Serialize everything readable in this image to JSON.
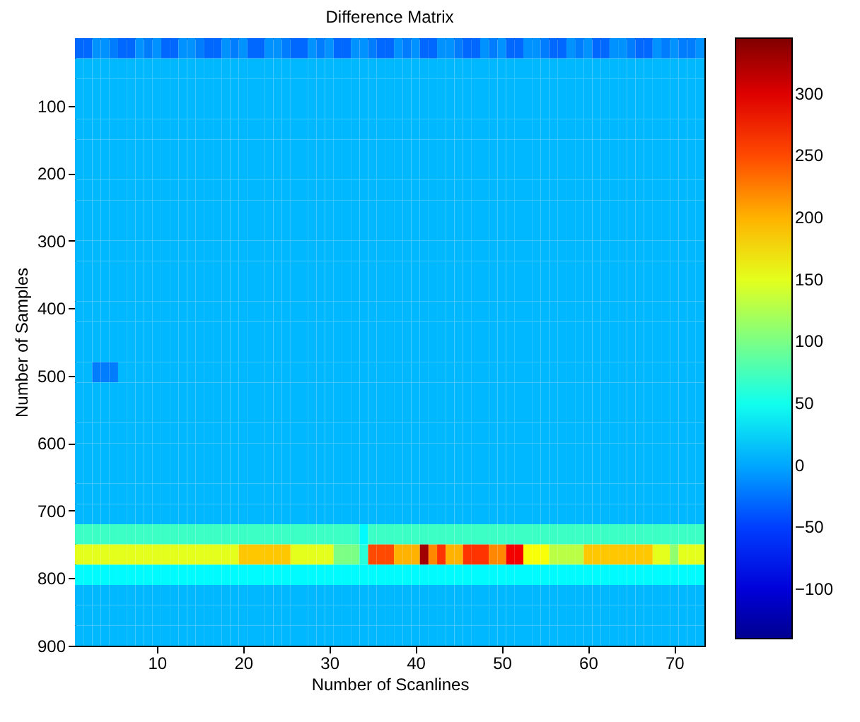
{
  "chart_data": {
    "type": "heatmap",
    "title": "Difference Matrix",
    "xlabel": "Number of Scanlines",
    "ylabel": "Number of Samples",
    "xlim": [
      0.5,
      73.5
    ],
    "ylim": [
      900,
      0
    ],
    "xticks": [
      10,
      20,
      30,
      40,
      50,
      60,
      70
    ],
    "yticks": [
      100,
      200,
      300,
      400,
      500,
      600,
      700,
      800,
      900
    ],
    "clim": [
      -140,
      345
    ],
    "cticks": [
      -100,
      -50,
      0,
      50,
      100,
      150,
      200,
      250,
      300
    ],
    "cells": [
      [
        -30,
        -30,
        -10,
        -10,
        -20,
        -30,
        -30,
        -10,
        -20,
        -10,
        -30,
        -30,
        -10,
        -10,
        -20,
        -30,
        -30,
        -10,
        -20,
        -10,
        -30,
        -30,
        -10,
        -10,
        -20,
        -30,
        -30,
        -10,
        -20,
        -10,
        -30,
        -30,
        -10,
        -10,
        -20,
        -30,
        -30,
        -10,
        -20,
        -10,
        -30,
        -30,
        -10,
        -10,
        -20,
        -30,
        -30,
        -10,
        -20,
        -10,
        -30,
        -30,
        -10,
        -10,
        -20,
        -30,
        -30,
        -10,
        -20,
        -10,
        -30,
        -30,
        -10,
        -10,
        -20,
        -30,
        -30,
        -10,
        -20,
        -10,
        -20,
        -20,
        -10
      ],
      [
        8,
        8,
        8,
        8,
        8,
        8,
        8,
        8,
        8,
        8,
        8,
        8,
        8,
        8,
        8,
        8,
        8,
        8,
        8,
        8,
        8,
        8,
        8,
        8,
        8,
        8,
        8,
        8,
        8,
        8,
        8,
        8,
        8,
        8,
        8,
        8,
        8,
        8,
        8,
        8,
        8,
        8,
        8,
        8,
        8,
        8,
        8,
        8,
        8,
        8,
        8,
        8,
        8,
        8,
        8,
        8,
        8,
        8,
        8,
        8,
        8,
        8,
        8,
        8,
        8,
        8,
        8,
        8,
        8,
        8,
        8,
        8,
        8
      ],
      [
        8,
        8,
        8,
        8,
        8,
        8,
        8,
        8,
        8,
        8,
        8,
        8,
        8,
        8,
        8,
        8,
        8,
        8,
        8,
        8,
        8,
        8,
        8,
        8,
        8,
        8,
        8,
        8,
        8,
        8,
        8,
        8,
        8,
        8,
        8,
        8,
        8,
        8,
        8,
        8,
        8,
        8,
        8,
        8,
        8,
        8,
        8,
        8,
        8,
        8,
        8,
        8,
        8,
        8,
        8,
        8,
        8,
        8,
        8,
        8,
        8,
        8,
        8,
        8,
        8,
        8,
        8,
        8,
        8,
        8,
        8,
        8,
        8
      ],
      [
        8,
        8,
        8,
        8,
        8,
        8,
        8,
        8,
        8,
        8,
        8,
        8,
        8,
        8,
        8,
        8,
        8,
        8,
        8,
        8,
        8,
        8,
        8,
        8,
        8,
        8,
        8,
        8,
        8,
        8,
        8,
        8,
        8,
        8,
        8,
        8,
        8,
        8,
        8,
        8,
        8,
        8,
        8,
        8,
        8,
        8,
        8,
        8,
        8,
        8,
        8,
        8,
        8,
        8,
        8,
        8,
        8,
        8,
        8,
        8,
        8,
        8,
        8,
        8,
        8,
        8,
        8,
        8,
        8,
        8,
        8,
        8,
        8
      ],
      [
        8,
        8,
        8,
        8,
        8,
        8,
        8,
        8,
        8,
        8,
        8,
        8,
        8,
        8,
        8,
        8,
        8,
        8,
        8,
        8,
        8,
        8,
        8,
        8,
        8,
        8,
        8,
        8,
        8,
        8,
        8,
        8,
        8,
        8,
        8,
        8,
        8,
        8,
        8,
        8,
        8,
        8,
        8,
        8,
        8,
        8,
        8,
        8,
        8,
        8,
        8,
        8,
        8,
        8,
        8,
        8,
        8,
        8,
        8,
        8,
        8,
        8,
        8,
        8,
        8,
        8,
        8,
        8,
        8,
        8,
        8,
        8,
        8
      ],
      [
        8,
        8,
        8,
        8,
        8,
        8,
        8,
        8,
        8,
        8,
        8,
        8,
        8,
        8,
        8,
        8,
        8,
        8,
        8,
        8,
        8,
        8,
        8,
        8,
        8,
        8,
        8,
        8,
        8,
        8,
        8,
        8,
        8,
        8,
        8,
        8,
        8,
        8,
        8,
        8,
        8,
        8,
        8,
        8,
        8,
        8,
        8,
        8,
        8,
        8,
        8,
        8,
        8,
        8,
        8,
        8,
        8,
        8,
        8,
        8,
        8,
        8,
        8,
        8,
        8,
        8,
        8,
        8,
        8,
        8,
        8,
        8,
        8
      ],
      [
        8,
        8,
        8,
        8,
        8,
        8,
        8,
        8,
        8,
        8,
        8,
        8,
        8,
        8,
        8,
        8,
        8,
        8,
        8,
        8,
        8,
        8,
        8,
        8,
        8,
        8,
        8,
        8,
        8,
        8,
        8,
        8,
        8,
        8,
        8,
        8,
        8,
        8,
        8,
        8,
        8,
        8,
        8,
        8,
        8,
        8,
        8,
        8,
        8,
        8,
        8,
        8,
        8,
        8,
        8,
        8,
        8,
        8,
        8,
        8,
        8,
        8,
        8,
        8,
        8,
        8,
        8,
        8,
        8,
        8,
        8,
        8,
        8
      ],
      [
        8,
        8,
        8,
        8,
        8,
        8,
        8,
        8,
        8,
        8,
        8,
        8,
        8,
        8,
        8,
        8,
        8,
        8,
        8,
        8,
        8,
        8,
        8,
        8,
        8,
        8,
        8,
        8,
        8,
        8,
        8,
        8,
        8,
        8,
        8,
        8,
        8,
        8,
        8,
        8,
        8,
        8,
        8,
        8,
        8,
        8,
        8,
        8,
        8,
        8,
        8,
        8,
        8,
        8,
        8,
        8,
        8,
        8,
        8,
        8,
        8,
        8,
        8,
        8,
        8,
        8,
        8,
        8,
        8,
        8,
        8,
        8,
        8
      ],
      [
        8,
        8,
        8,
        8,
        8,
        8,
        8,
        8,
        8,
        8,
        8,
        8,
        8,
        8,
        8,
        8,
        8,
        8,
        8,
        8,
        8,
        8,
        8,
        8,
        8,
        8,
        8,
        8,
        8,
        8,
        8,
        8,
        8,
        8,
        8,
        8,
        8,
        8,
        8,
        8,
        8,
        8,
        8,
        8,
        8,
        8,
        8,
        8,
        8,
        8,
        8,
        8,
        8,
        8,
        8,
        8,
        8,
        8,
        8,
        8,
        8,
        8,
        8,
        8,
        8,
        8,
        8,
        8,
        8,
        8,
        8,
        8,
        8
      ],
      [
        8,
        8,
        8,
        8,
        8,
        8,
        8,
        8,
        8,
        8,
        8,
        8,
        8,
        8,
        8,
        8,
        8,
        8,
        8,
        8,
        8,
        8,
        8,
        8,
        8,
        8,
        8,
        8,
        8,
        8,
        8,
        8,
        8,
        8,
        8,
        8,
        8,
        8,
        8,
        8,
        8,
        8,
        8,
        8,
        8,
        8,
        8,
        8,
        8,
        8,
        8,
        8,
        8,
        8,
        8,
        8,
        8,
        8,
        8,
        8,
        8,
        8,
        8,
        8,
        8,
        8,
        8,
        8,
        8,
        8,
        8,
        8,
        8
      ],
      [
        8,
        8,
        8,
        8,
        8,
        8,
        8,
        8,
        8,
        8,
        8,
        8,
        8,
        8,
        8,
        8,
        8,
        8,
        8,
        8,
        8,
        8,
        8,
        8,
        8,
        8,
        8,
        8,
        8,
        8,
        8,
        8,
        8,
        8,
        8,
        8,
        8,
        8,
        8,
        8,
        8,
        8,
        8,
        8,
        8,
        8,
        8,
        8,
        8,
        8,
        8,
        8,
        8,
        8,
        8,
        8,
        8,
        8,
        8,
        8,
        8,
        8,
        8,
        8,
        8,
        8,
        8,
        8,
        8,
        8,
        8,
        8,
        8
      ],
      [
        8,
        8,
        8,
        8,
        8,
        8,
        8,
        8,
        8,
        8,
        8,
        8,
        8,
        8,
        8,
        8,
        8,
        8,
        8,
        8,
        8,
        8,
        8,
        8,
        8,
        8,
        8,
        8,
        8,
        8,
        8,
        8,
        8,
        8,
        8,
        8,
        8,
        8,
        8,
        8,
        8,
        8,
        8,
        8,
        8,
        8,
        8,
        8,
        8,
        8,
        8,
        8,
        8,
        8,
        8,
        8,
        8,
        8,
        8,
        8,
        8,
        8,
        8,
        8,
        8,
        8,
        8,
        8,
        8,
        8,
        8,
        8,
        8
      ],
      [
        8,
        8,
        8,
        8,
        8,
        8,
        8,
        8,
        8,
        8,
        8,
        8,
        8,
        8,
        8,
        8,
        8,
        8,
        8,
        8,
        8,
        8,
        8,
        8,
        8,
        8,
        8,
        8,
        8,
        8,
        8,
        8,
        8,
        8,
        8,
        8,
        8,
        8,
        8,
        8,
        8,
        8,
        8,
        8,
        8,
        8,
        8,
        8,
        8,
        8,
        8,
        8,
        8,
        8,
        8,
        8,
        8,
        8,
        8,
        8,
        8,
        8,
        8,
        8,
        8,
        8,
        8,
        8,
        8,
        8,
        8,
        8,
        8
      ],
      [
        8,
        8,
        8,
        8,
        8,
        8,
        8,
        8,
        8,
        8,
        8,
        8,
        8,
        8,
        8,
        8,
        8,
        8,
        8,
        8,
        8,
        8,
        8,
        8,
        8,
        8,
        8,
        8,
        8,
        8,
        8,
        8,
        8,
        8,
        8,
        8,
        8,
        8,
        8,
        8,
        8,
        8,
        8,
        8,
        8,
        8,
        8,
        8,
        8,
        8,
        8,
        8,
        8,
        8,
        8,
        8,
        8,
        8,
        8,
        8,
        8,
        8,
        8,
        8,
        8,
        8,
        8,
        8,
        8,
        8,
        8,
        8,
        8
      ],
      [
        8,
        8,
        8,
        8,
        8,
        8,
        8,
        8,
        8,
        8,
        8,
        8,
        8,
        8,
        8,
        8,
        8,
        8,
        8,
        8,
        8,
        8,
        8,
        8,
        8,
        8,
        8,
        8,
        8,
        8,
        8,
        8,
        8,
        8,
        8,
        8,
        8,
        8,
        8,
        8,
        8,
        8,
        8,
        8,
        8,
        8,
        8,
        8,
        8,
        8,
        8,
        8,
        8,
        8,
        8,
        8,
        8,
        8,
        8,
        8,
        8,
        8,
        8,
        8,
        8,
        8,
        8,
        8,
        8,
        8,
        8,
        8,
        8
      ],
      [
        8,
        8,
        8,
        8,
        8,
        8,
        8,
        8,
        8,
        8,
        8,
        8,
        8,
        8,
        8,
        8,
        8,
        8,
        8,
        8,
        8,
        8,
        8,
        8,
        8,
        8,
        8,
        8,
        8,
        8,
        8,
        8,
        8,
        8,
        8,
        8,
        8,
        8,
        8,
        8,
        8,
        8,
        8,
        8,
        8,
        8,
        8,
        8,
        8,
        8,
        8,
        8,
        8,
        8,
        8,
        8,
        8,
        8,
        8,
        8,
        8,
        8,
        8,
        8,
        8,
        8,
        8,
        8,
        8,
        8,
        8,
        8,
        8
      ],
      [
        8,
        8,
        -20,
        -20,
        -20,
        8,
        8,
        8,
        8,
        8,
        8,
        8,
        8,
        8,
        8,
        8,
        8,
        8,
        8,
        8,
        8,
        8,
        8,
        8,
        8,
        8,
        8,
        8,
        8,
        8,
        8,
        8,
        8,
        8,
        8,
        8,
        8,
        8,
        8,
        8,
        8,
        8,
        8,
        8,
        8,
        8,
        8,
        8,
        8,
        8,
        8,
        8,
        8,
        8,
        8,
        8,
        8,
        8,
        8,
        8,
        8,
        8,
        8,
        8,
        8,
        8,
        8,
        8,
        8,
        8,
        8,
        8,
        8
      ],
      [
        8,
        8,
        8,
        8,
        8,
        8,
        8,
        8,
        8,
        8,
        8,
        8,
        8,
        8,
        8,
        8,
        8,
        8,
        8,
        8,
        8,
        8,
        8,
        8,
        8,
        8,
        8,
        8,
        8,
        8,
        8,
        8,
        8,
        8,
        8,
        8,
        8,
        8,
        8,
        8,
        8,
        8,
        8,
        8,
        8,
        8,
        8,
        8,
        8,
        8,
        8,
        8,
        8,
        8,
        8,
        8,
        8,
        8,
        8,
        8,
        8,
        8,
        8,
        8,
        8,
        8,
        8,
        8,
        8,
        8,
        8,
        8,
        8
      ],
      [
        8,
        8,
        8,
        8,
        8,
        8,
        8,
        8,
        8,
        8,
        8,
        8,
        8,
        8,
        8,
        8,
        8,
        8,
        8,
        8,
        8,
        8,
        8,
        8,
        8,
        8,
        8,
        8,
        8,
        8,
        8,
        8,
        8,
        8,
        8,
        8,
        8,
        8,
        8,
        8,
        8,
        8,
        8,
        8,
        8,
        8,
        8,
        8,
        8,
        8,
        8,
        8,
        8,
        8,
        8,
        8,
        8,
        8,
        8,
        8,
        8,
        8,
        8,
        8,
        8,
        8,
        8,
        8,
        8,
        8,
        8,
        8,
        8
      ],
      [
        8,
        8,
        8,
        8,
        8,
        8,
        8,
        8,
        8,
        8,
        8,
        8,
        8,
        8,
        8,
        8,
        8,
        8,
        8,
        8,
        8,
        8,
        8,
        8,
        8,
        8,
        8,
        8,
        8,
        8,
        8,
        8,
        8,
        8,
        8,
        8,
        8,
        8,
        8,
        8,
        8,
        8,
        8,
        8,
        8,
        8,
        8,
        8,
        8,
        8,
        8,
        8,
        8,
        8,
        8,
        8,
        8,
        8,
        8,
        8,
        8,
        8,
        8,
        8,
        8,
        8,
        8,
        8,
        8,
        8,
        8,
        8,
        8
      ],
      [
        8,
        8,
        8,
        8,
        8,
        8,
        8,
        8,
        8,
        8,
        8,
        8,
        8,
        8,
        8,
        8,
        8,
        8,
        8,
        8,
        8,
        8,
        8,
        8,
        8,
        8,
        8,
        8,
        8,
        8,
        8,
        8,
        8,
        8,
        8,
        8,
        8,
        8,
        8,
        8,
        8,
        8,
        8,
        8,
        8,
        8,
        8,
        8,
        8,
        8,
        8,
        8,
        8,
        8,
        8,
        8,
        8,
        8,
        8,
        8,
        8,
        8,
        8,
        8,
        8,
        8,
        8,
        8,
        8,
        8,
        8,
        8,
        8
      ],
      [
        8,
        8,
        8,
        8,
        8,
        8,
        8,
        8,
        8,
        8,
        8,
        8,
        8,
        8,
        8,
        8,
        8,
        8,
        8,
        8,
        8,
        8,
        8,
        8,
        8,
        8,
        8,
        8,
        8,
        8,
        8,
        8,
        8,
        8,
        8,
        8,
        8,
        8,
        8,
        8,
        8,
        8,
        8,
        8,
        8,
        8,
        8,
        8,
        8,
        8,
        8,
        8,
        8,
        8,
        8,
        8,
        8,
        8,
        8,
        8,
        8,
        8,
        8,
        8,
        8,
        8,
        8,
        8,
        8,
        8,
        8,
        8,
        8
      ],
      [
        8,
        8,
        8,
        8,
        8,
        8,
        8,
        8,
        8,
        8,
        8,
        8,
        8,
        8,
        8,
        8,
        8,
        8,
        8,
        8,
        8,
        8,
        8,
        8,
        8,
        8,
        8,
        8,
        8,
        8,
        8,
        8,
        8,
        8,
        8,
        8,
        8,
        8,
        8,
        8,
        8,
        8,
        8,
        8,
        8,
        8,
        8,
        8,
        8,
        8,
        8,
        8,
        8,
        8,
        8,
        8,
        8,
        8,
        8,
        8,
        8,
        8,
        8,
        8,
        8,
        8,
        8,
        8,
        8,
        8,
        8,
        8,
        8
      ],
      [
        8,
        8,
        8,
        8,
        8,
        8,
        8,
        8,
        8,
        8,
        8,
        8,
        8,
        8,
        8,
        8,
        8,
        8,
        8,
        8,
        8,
        8,
        8,
        8,
        8,
        8,
        8,
        8,
        8,
        8,
        8,
        8,
        8,
        8,
        8,
        8,
        8,
        8,
        8,
        8,
        8,
        8,
        8,
        8,
        8,
        8,
        8,
        8,
        8,
        8,
        8,
        8,
        8,
        8,
        8,
        8,
        8,
        8,
        8,
        8,
        8,
        8,
        8,
        8,
        8,
        8,
        8,
        8,
        8,
        8,
        8,
        8,
        8
      ],
      [
        70,
        70,
        70,
        70,
        70,
        70,
        70,
        70,
        70,
        70,
        70,
        70,
        70,
        70,
        70,
        70,
        70,
        70,
        70,
        70,
        70,
        70,
        70,
        70,
        70,
        70,
        70,
        70,
        70,
        70,
        70,
        70,
        70,
        40,
        70,
        70,
        70,
        70,
        70,
        70,
        70,
        70,
        70,
        70,
        70,
        70,
        70,
        70,
        70,
        70,
        70,
        70,
        70,
        70,
        70,
        70,
        70,
        70,
        70,
        70,
        70,
        70,
        70,
        70,
        70,
        70,
        70,
        70,
        70,
        70,
        70,
        70,
        70
      ],
      [
        150,
        150,
        150,
        150,
        150,
        150,
        150,
        150,
        150,
        150,
        150,
        150,
        150,
        150,
        150,
        150,
        150,
        150,
        150,
        190,
        190,
        190,
        190,
        190,
        190,
        150,
        150,
        150,
        150,
        150,
        100,
        100,
        100,
        60,
        250,
        250,
        250,
        200,
        200,
        200,
        330,
        220,
        260,
        200,
        200,
        260,
        260,
        260,
        220,
        220,
        290,
        290,
        160,
        160,
        160,
        130,
        130,
        130,
        130,
        190,
        190,
        190,
        190,
        190,
        190,
        190,
        190,
        150,
        150,
        110,
        150,
        150,
        150
      ],
      [
        40,
        40,
        40,
        40,
        40,
        40,
        40,
        40,
        40,
        40,
        40,
        40,
        40,
        40,
        40,
        40,
        40,
        40,
        40,
        40,
        40,
        40,
        40,
        40,
        40,
        40,
        40,
        40,
        40,
        40,
        40,
        40,
        40,
        40,
        40,
        40,
        40,
        40,
        40,
        40,
        40,
        40,
        40,
        40,
        40,
        40,
        40,
        40,
        40,
        40,
        40,
        40,
        40,
        40,
        40,
        40,
        40,
        40,
        40,
        40,
        40,
        40,
        40,
        40,
        40,
        40,
        40,
        40,
        40,
        40,
        40,
        40,
        40
      ],
      [
        8,
        8,
        8,
        8,
        8,
        8,
        8,
        8,
        8,
        8,
        8,
        8,
        8,
        8,
        8,
        8,
        8,
        8,
        8,
        8,
        8,
        8,
        8,
        8,
        8,
        8,
        8,
        8,
        8,
        8,
        8,
        8,
        8,
        8,
        8,
        8,
        8,
        8,
        8,
        8,
        8,
        8,
        8,
        8,
        8,
        8,
        8,
        8,
        8,
        8,
        8,
        8,
        8,
        8,
        8,
        8,
        8,
        8,
        8,
        8,
        8,
        8,
        8,
        8,
        8,
        8,
        8,
        8,
        8,
        8,
        8,
        8,
        8
      ],
      [
        8,
        8,
        8,
        8,
        8,
        8,
        8,
        8,
        8,
        8,
        8,
        8,
        8,
        8,
        8,
        8,
        8,
        8,
        8,
        8,
        8,
        8,
        8,
        8,
        8,
        8,
        8,
        8,
        8,
        8,
        8,
        8,
        8,
        8,
        8,
        8,
        8,
        8,
        8,
        8,
        8,
        8,
        8,
        8,
        8,
        8,
        8,
        8,
        8,
        8,
        8,
        8,
        8,
        8,
        8,
        8,
        8,
        8,
        8,
        8,
        8,
        8,
        8,
        8,
        8,
        8,
        8,
        8,
        8,
        8,
        8,
        8,
        8
      ],
      [
        8,
        8,
        8,
        8,
        8,
        8,
        8,
        8,
        8,
        8,
        8,
        8,
        8,
        8,
        8,
        8,
        8,
        8,
        8,
        8,
        8,
        8,
        8,
        8,
        8,
        8,
        8,
        8,
        8,
        8,
        8,
        8,
        8,
        8,
        8,
        8,
        8,
        8,
        8,
        8,
        8,
        8,
        8,
        8,
        8,
        8,
        8,
        8,
        8,
        8,
        8,
        8,
        8,
        8,
        8,
        8,
        8,
        8,
        8,
        8,
        8,
        8,
        8,
        8,
        8,
        8,
        8,
        8,
        8,
        8,
        8,
        8,
        8
      ]
    ]
  }
}
